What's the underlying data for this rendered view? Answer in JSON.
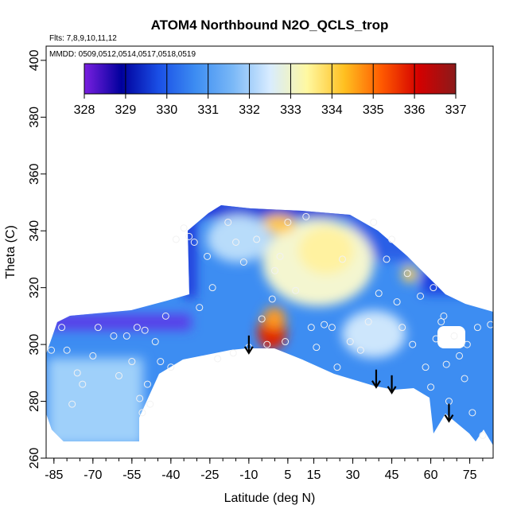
{
  "chart_data": {
    "type": "heatmap",
    "title": "ATOM4 Northbound N2O_QCLS_trop",
    "flights_note": "Flts: 7,8,9,10,11,12",
    "dates_note": "MMDD: 0509,0512,0514,0517,0518,0519",
    "xlabel": "Latitude (deg N)",
    "ylabel": "Theta (C)",
    "xlim": [
      -88,
      84
    ],
    "ylim": [
      260,
      405
    ],
    "xticks": [
      -85,
      -70,
      -55,
      -40,
      -25,
      -10,
      5,
      15,
      30,
      45,
      60,
      75
    ],
    "yticks": [
      260,
      280,
      300,
      320,
      340,
      360,
      380,
      400
    ],
    "colorbar": {
      "ticks": [
        328,
        329,
        330,
        331,
        332,
        333,
        334,
        335,
        336,
        337
      ],
      "colors": [
        "#7a1fe0",
        "#00009c",
        "#1a4fe6",
        "#3d8df2",
        "#7ab8f7",
        "#d8ecff",
        "#fff8a0",
        "#ffc020",
        "#ff5a00",
        "#d40000",
        "#8b1a1a"
      ]
    },
    "arrows": [
      {
        "lat": -10,
        "theta": 297
      },
      {
        "lat": 39,
        "theta": 285
      },
      {
        "lat": 45,
        "theta": 283
      },
      {
        "lat": 67,
        "theta": 273
      }
    ],
    "observations": [
      [
        -86,
        298
      ],
      [
        -82,
        306
      ],
      [
        -80,
        298
      ],
      [
        -78,
        279
      ],
      [
        -76,
        290
      ],
      [
        -74,
        286
      ],
      [
        -70,
        296
      ],
      [
        -68,
        306
      ],
      [
        -62,
        303
      ],
      [
        -60,
        289
      ],
      [
        -57,
        303
      ],
      [
        -55,
        294
      ],
      [
        -53,
        306
      ],
      [
        -52,
        281
      ],
      [
        -51,
        276
      ],
      [
        -50,
        305
      ],
      [
        -49,
        286
      ],
      [
        -48,
        279
      ],
      [
        -46,
        301
      ],
      [
        -44,
        294
      ],
      [
        -42,
        310
      ],
      [
        -40,
        292
      ],
      [
        -38,
        337
      ],
      [
        -35,
        341
      ],
      [
        -33,
        338
      ],
      [
        -31,
        336
      ],
      [
        -29,
        313
      ],
      [
        -26,
        331
      ],
      [
        -24,
        320
      ],
      [
        -22,
        295
      ],
      [
        -18,
        343
      ],
      [
        -16,
        297
      ],
      [
        -15,
        336
      ],
      [
        -12,
        329
      ],
      [
        -10,
        299
      ],
      [
        -7,
        337
      ],
      [
        -5,
        309
      ],
      [
        -3,
        300
      ],
      [
        -1,
        316
      ],
      [
        0,
        326
      ],
      [
        2,
        331
      ],
      [
        4,
        301
      ],
      [
        5,
        343
      ],
      [
        8,
        319
      ],
      [
        12,
        345
      ],
      [
        14,
        306
      ],
      [
        16,
        299
      ],
      [
        19,
        307
      ],
      [
        22,
        306
      ],
      [
        24,
        292
      ],
      [
        26,
        330
      ],
      [
        29,
        301
      ],
      [
        33,
        298
      ],
      [
        36,
        308
      ],
      [
        38,
        343
      ],
      [
        40,
        318
      ],
      [
        43,
        330
      ],
      [
        45,
        337
      ],
      [
        47,
        315
      ],
      [
        49,
        306
      ],
      [
        51,
        325
      ],
      [
        53,
        300
      ],
      [
        56,
        317
      ],
      [
        58,
        292
      ],
      [
        60,
        285
      ],
      [
        61,
        320
      ],
      [
        62,
        302
      ],
      [
        64,
        308
      ],
      [
        65,
        310
      ],
      [
        66,
        293
      ],
      [
        67,
        280
      ],
      [
        69,
        303
      ],
      [
        71,
        296
      ],
      [
        73,
        288
      ],
      [
        74,
        300
      ],
      [
        76,
        276
      ],
      [
        78,
        306
      ],
      [
        80,
        268
      ],
      [
        83,
        307
      ]
    ]
  }
}
